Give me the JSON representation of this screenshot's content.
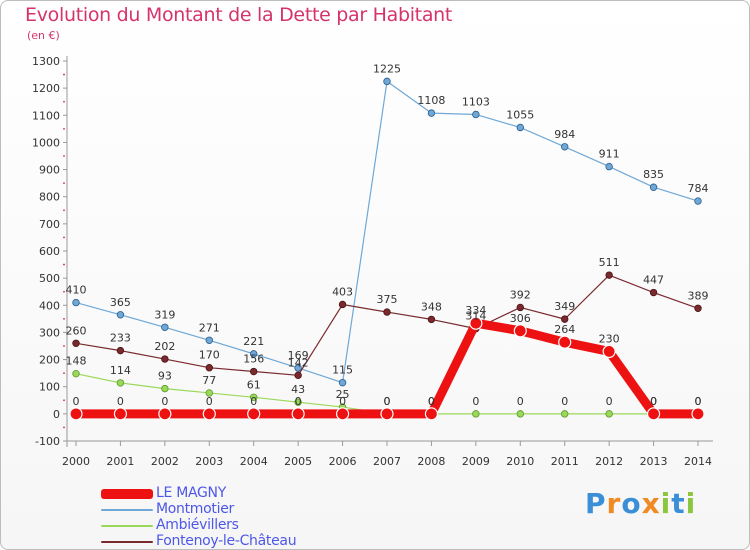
{
  "header": {
    "title": "Evolution du Montant de la Dette par Habitant",
    "subtitle": "(en €)"
  },
  "logo": {
    "text": "Proxiti",
    "letters": [
      "P",
      "r",
      "o",
      "x",
      "i",
      "t",
      "i"
    ],
    "colors": [
      "#3b8fd6",
      "#f08a24",
      "#3b8fd6",
      "#f08a24",
      "#8cc63f",
      "#3b8fd6",
      "#8cc63f"
    ]
  },
  "chart_data": {
    "type": "line",
    "title": "Evolution du Montant de la Dette par Habitant",
    "ylabel": "(en €)",
    "x": [
      "2000",
      "2001",
      "2002",
      "2003",
      "2004",
      "2005",
      "2006",
      "2007",
      "2008",
      "2009",
      "2010",
      "2011",
      "2012",
      "2013",
      "2014"
    ],
    "ylim": [
      -100,
      1300
    ],
    "yticks": [
      -100,
      0,
      100,
      200,
      300,
      400,
      500,
      600,
      700,
      800,
      900,
      1000,
      1100,
      1200,
      1300
    ],
    "grid": false,
    "legend_position": "bottom-left",
    "series": [
      {
        "name": "LE MAGNY",
        "color": "#ee1111",
        "values": [
          0,
          0,
          0,
          0,
          0,
          0,
          0,
          0,
          0,
          334,
          306,
          264,
          230,
          0,
          0
        ],
        "labels": [
          "0",
          "0",
          "0",
          "0",
          "0",
          "0",
          "0",
          "0",
          "0",
          "334",
          "306",
          "264",
          "230",
          "0",
          "0"
        ]
      },
      {
        "name": "Montmotier",
        "color": "#6fa8d6",
        "values": [
          410,
          365,
          319,
          271,
          221,
          169,
          115,
          1225,
          1108,
          1103,
          1055,
          984,
          911,
          835,
          784
        ],
        "labels": [
          "410",
          "365",
          "319",
          "271",
          "221",
          "169",
          "115",
          "1225",
          "1108",
          "1103",
          "1055",
          "984",
          "911",
          "835",
          "784"
        ]
      },
      {
        "name": "Ambiévillers",
        "color": "#9ad85a",
        "values": [
          148,
          114,
          93,
          77,
          61,
          43,
          25,
          0,
          0,
          0,
          0,
          0,
          0,
          0,
          0
        ],
        "labels": [
          "148",
          "114",
          "93",
          "77",
          "61",
          "43",
          "25",
          "0",
          "0",
          "0",
          "0",
          "0",
          "0",
          "0",
          "0"
        ]
      },
      {
        "name": "Fontenoy-le-Château",
        "color": "#7a2a2e",
        "values": [
          260,
          233,
          202,
          170,
          156,
          142,
          403,
          375,
          348,
          314,
          392,
          349,
          511,
          447,
          389
        ],
        "labels": [
          "260",
          "233",
          "202",
          "170",
          "156",
          "142",
          "403",
          "375",
          "348",
          "314",
          "392",
          "349",
          "511",
          "447",
          "389"
        ]
      }
    ]
  }
}
